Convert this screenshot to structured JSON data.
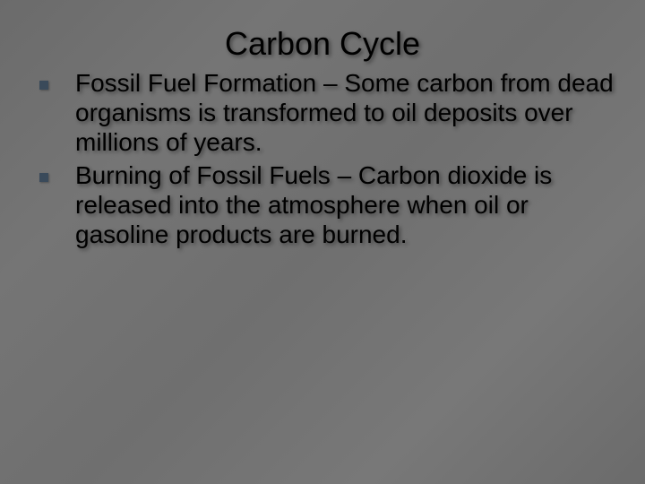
{
  "slide": {
    "title": "Carbon Cycle",
    "title_fontsize": 36,
    "body_fontsize": 28,
    "background_color": "#707070",
    "text_color": "#000000",
    "bullet_color": "#3a4a5a",
    "shadow_color": "rgba(0,0,0,0.45)",
    "bullets": [
      {
        "text": "Fossil Fuel Formation – Some carbon from dead organisms is transformed to oil deposits over millions of years."
      },
      {
        "text": "Burning of Fossil Fuels – Carbon dioxide is released into the atmosphere when oil or gasoline products are burned."
      }
    ]
  }
}
